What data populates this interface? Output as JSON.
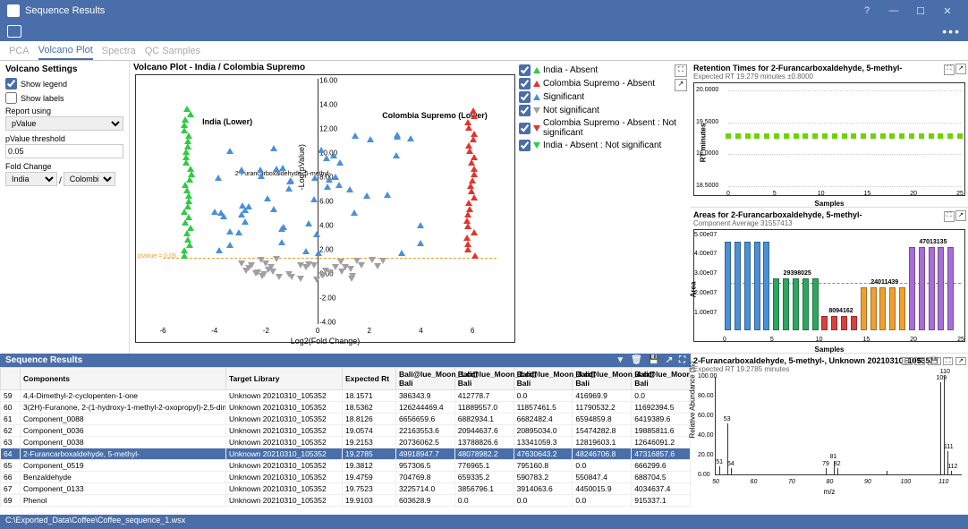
{
  "window": {
    "title": "Sequence Results"
  },
  "tabs": [
    "PCA",
    "Volcano Plot",
    "Spectra",
    "QC Samples"
  ],
  "active_tab": 1,
  "settings": {
    "title": "Volcano Settings",
    "show_legend": true,
    "show_legend_label": "Show legend",
    "show_labels": false,
    "show_labels_label": "Show labels",
    "report_using_label": "Report using",
    "report_using": "pValue",
    "pvalue_threshold_label": "pValue threshold",
    "pvalue_threshold": "0.05",
    "fold_change_label": "Fold Change",
    "fc_left": "India",
    "fc_right": "Colombia Supremo"
  },
  "volcano": {
    "title": "Volcano Plot - India / Colombia Supremo",
    "left_label": "India (Lower)",
    "right_label": "Colombia Supremo (Lower)",
    "callout": "2-Furancarboxaldehyde, 5-methyl-",
    "threshold_label": "pValue = 0.05",
    "xlabel": "Log2(Fold Change)",
    "ylabel": "-Log(pValue)",
    "xlim": [
      -6,
      7
    ],
    "xticks": [
      -6,
      -4,
      -2,
      0,
      2,
      4,
      6
    ],
    "ylim": [
      -4,
      16
    ],
    "yticks": [
      -4,
      -2,
      0,
      2,
      4,
      6,
      8,
      10,
      12,
      14,
      16
    ],
    "colors": {
      "india": "#2ecc40",
      "colombia": "#e6332a",
      "sig": "#4a90d9",
      "notsig": "#a0a0a0",
      "threshold": "#f0a030"
    },
    "legend": [
      {
        "label": "India - Absent",
        "color": "#2ecc40",
        "dir": "up"
      },
      {
        "label": "Colombia Supremo - Absent",
        "color": "#e6332a",
        "dir": "up"
      },
      {
        "label": "Significant",
        "color": "#4a90d9",
        "dir": "up"
      },
      {
        "label": "Not significant",
        "color": "#a0a0a0",
        "dir": "dn"
      },
      {
        "label": "Colombia Supremo - Absent : Not significant",
        "color": "#e6332a",
        "dir": "dn"
      },
      {
        "label": "India - Absent : Not significant",
        "color": "#2ecc40",
        "dir": "dn"
      }
    ]
  },
  "rt_panel": {
    "title": "Retention Times for 2-Furancarboxaldehyde, 5-methyl-",
    "sub": "Expected RT 19.279 minutes ±0.8000",
    "xlabel": "Samples",
    "ylabel": "RT minutes",
    "ylim": [
      18,
      20.5
    ],
    "yticks": [
      "18.5000",
      "19.0000",
      "19.5000",
      "20.0000"
    ],
    "xlim": [
      0,
      25
    ],
    "xticks": [
      0,
      5,
      10,
      15,
      20,
      25
    ],
    "point_color": "#6dd400",
    "n": 25,
    "value": 19.3
  },
  "area_panel": {
    "title": "Areas for 2-Furancarboxaldehyde, 5-methyl-",
    "sub": "Component Average 31557413",
    "xlabel": "Samples",
    "ylabel": "Area",
    "yticks": [
      "1.00e07",
      "2.00e07",
      "3.00e07",
      "4.00e07",
      "5.00e07"
    ],
    "xticks": [
      0,
      5,
      10,
      15,
      20,
      25
    ],
    "groups": [
      {
        "color": "#4a90d9",
        "label": "",
        "value": 50000000,
        "n": 5
      },
      {
        "color": "#2ea65f",
        "label": "29398025",
        "value": 29398025,
        "n": 5
      },
      {
        "color": "#d94040",
        "label": "8094162",
        "value": 8094162,
        "n": 4
      },
      {
        "color": "#f0a030",
        "label": "24011439",
        "value": 24011439,
        "n": 5
      },
      {
        "color": "#a96dd9",
        "label": "47013135",
        "value": 47013135,
        "n": 5
      }
    ],
    "avg_line": 28000000,
    "max": 55000000
  },
  "table": {
    "title": "Sequence Results",
    "columns": [
      "",
      "Components",
      "Target Library",
      "Expected Rt",
      "Bali@lue_Moon_1.cdf Bali",
      "Bali@lue_Moon_2.cdf Bali",
      "Bali@lue_Moon_3.cdf Bali",
      "Bali@lue_Moon_4.cdf Bali",
      "Bali@lue_Moor Bali"
    ],
    "rows": [
      [
        "59",
        "4,4-Dimethyl-2-cyclopenten-1-one",
        "Unknown 20210310_105352",
        "18.1571",
        "386343.9",
        "412778.7",
        "0.0",
        "416969.9",
        "0.0"
      ],
      [
        "60",
        "3(2H)-Furanone, 2-(1-hydroxy-1-methyl-2-oxopropyl)-2,5-dimethyl-",
        "Unknown 20210310_105352",
        "18.5362",
        "126244469.4",
        "11889557.0",
        "11857461.5",
        "11790532.2",
        "11692394.5"
      ],
      [
        "61",
        "Component_0088",
        "Unknown 20210310_105352",
        "18.8126",
        "6656659.6",
        "6882934.1",
        "6682482.4",
        "6594859.8",
        "6419389.6"
      ],
      [
        "62",
        "Component_0036",
        "Unknown 20210310_105352",
        "19.0574",
        "22163553.6",
        "20944637.6",
        "20895034.0",
        "15474282.8",
        "19885811.6"
      ],
      [
        "63",
        "Component_0038",
        "Unknown 20210310_105352",
        "19.2153",
        "20736062.5",
        "13788826.6",
        "13341059.3",
        "12819603.1",
        "12646091.2"
      ],
      [
        "64",
        "2-Furancarboxaldehyde, 5-methyl-",
        "Unknown 20210310_105352",
        "19.2785",
        "49918947.7",
        "48078982.2",
        "47630643.2",
        "48246706.8",
        "47316857.6"
      ],
      [
        "65",
        "Component_0519",
        "Unknown 20210310_105352",
        "19.3812",
        "957306.5",
        "776965.1",
        "795160.8",
        "0.0",
        "666299.6"
      ],
      [
        "66",
        "Benzaldehyde",
        "Unknown 20210310_105352",
        "19.4759",
        "704769.8",
        "659335.2",
        "590783.2",
        "550847.4",
        "688704.5"
      ],
      [
        "67",
        "Component_0133",
        "Unknown 20210310_105352",
        "19.7523",
        "3225714.0",
        "3856796.1",
        "3914063.6",
        "4450015.9",
        "4034637.4"
      ],
      [
        "69",
        "Phenol",
        "Unknown 20210310_105352",
        "19.9103",
        "603628.9",
        "0.0",
        "0.0",
        "0.0",
        "915337.1"
      ]
    ],
    "selected": 5
  },
  "spectrum": {
    "title": "2-Furancarboxaldehyde, 5-methyl-, Unknown 20210310_105352",
    "sub": "Expected RT 19.2785 minutes",
    "xlabel": "m/z",
    "ylabel": "Relative Abundance (%)",
    "xlim": [
      50,
      115
    ],
    "xticks": [
      50,
      60,
      70,
      80,
      90,
      100,
      110
    ],
    "yticks": [
      0,
      20,
      40,
      60,
      80,
      100
    ],
    "peaks": [
      {
        "mz": 51,
        "h": 8,
        "label": "51"
      },
      {
        "mz": 53,
        "h": 52,
        "label": "53"
      },
      {
        "mz": 54,
        "h": 6,
        "label": "54"
      },
      {
        "mz": 79,
        "h": 6,
        "label": "79"
      },
      {
        "mz": 81,
        "h": 14,
        "label": "81"
      },
      {
        "mz": 82,
        "h": 6,
        "label": "82"
      },
      {
        "mz": 95,
        "h": 4
      },
      {
        "mz": 109,
        "h": 94,
        "label": "109"
      },
      {
        "mz": 110,
        "h": 100,
        "label": "110"
      },
      {
        "mz": 111,
        "h": 24,
        "label": "111"
      },
      {
        "mz": 112,
        "h": 4,
        "label": "112"
      }
    ]
  },
  "statusbar": "C:\\Exported_Data\\Coffee\\Coffee_sequence_1.wsx"
}
